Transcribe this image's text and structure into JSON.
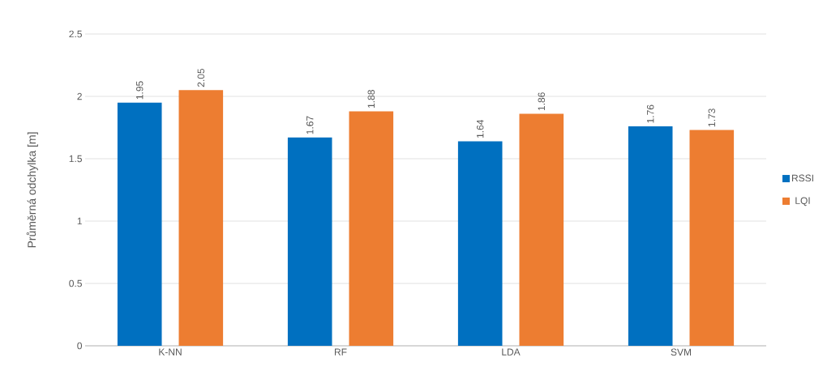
{
  "chart_data": {
    "type": "bar",
    "ylabel": "Průměrná odchylka [m]",
    "categories": [
      "K-NN",
      "RF",
      "LDA",
      "SVM"
    ],
    "series": [
      {
        "name": "RSSI",
        "color": "#0070c0",
        "values": [
          1.95,
          1.67,
          1.64,
          1.76
        ]
      },
      {
        "name": "LQI",
        "color": "#ed7d31",
        "values": [
          2.05,
          1.88,
          1.86,
          1.73
        ]
      }
    ],
    "ylim": [
      0,
      2.5
    ],
    "yticks": [
      0,
      0.5,
      1,
      1.5,
      2,
      2.5
    ],
    "grid": "y",
    "legend": "right",
    "data_labels": true
  }
}
